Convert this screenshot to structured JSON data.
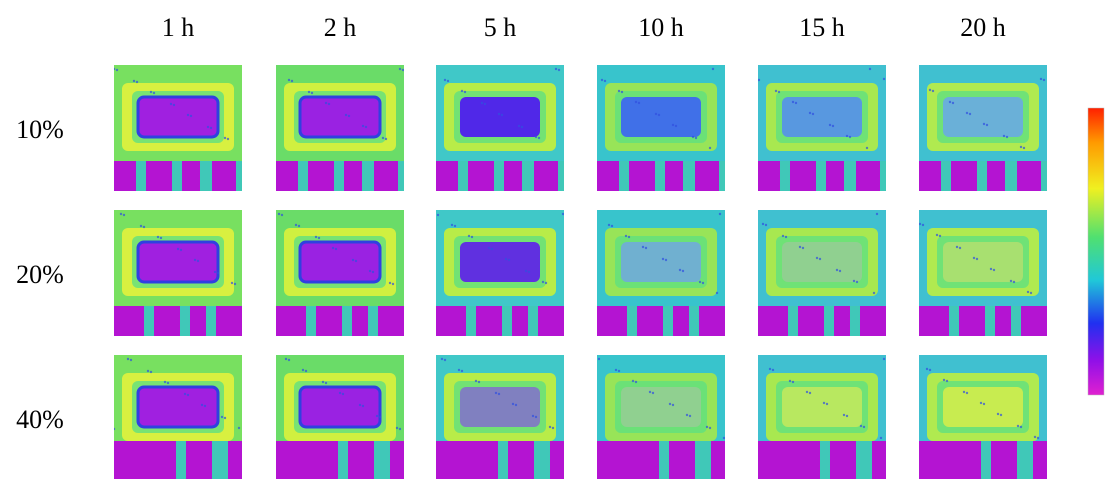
{
  "column_headers": [
    "1 h",
    "2 h",
    "5 h",
    "10 h",
    "15 h",
    "20 h"
  ],
  "row_labels": [
    "10%",
    "20%",
    "40%"
  ]
}
